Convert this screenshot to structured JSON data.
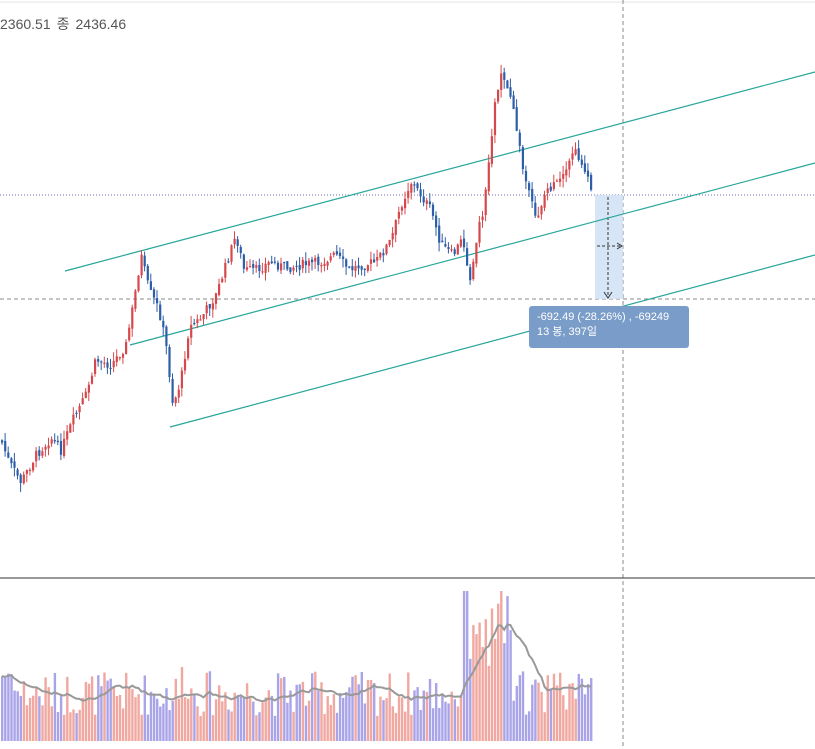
{
  "legend": {
    "low_value": "2360.51",
    "close_label": "종",
    "close_value": "2436.46"
  },
  "measure": {
    "line1": "-692.49 (-28.26%) , -69249",
    "line2": "13 봉, 397일"
  },
  "colors": {
    "up": "#d6484b",
    "down": "#2d5ea8",
    "channel": "#26a69a",
    "ma": "#999999",
    "vol_up": "#f0a8a0",
    "vol_down": "#a9a3e8",
    "measure_fill": "#cfe2f5",
    "tooltip": "#7a9cc9"
  },
  "chart_data": {
    "type": "candlestick",
    "description_units": "price",
    "price_range": [
      1600,
      3600
    ],
    "reference_price": 2450,
    "measure_target_price": 1757.97,
    "candles_approx_count": 190,
    "channel_lines": 3,
    "volume_panel": {
      "bars": "per candle",
      "moving_average": true
    }
  }
}
